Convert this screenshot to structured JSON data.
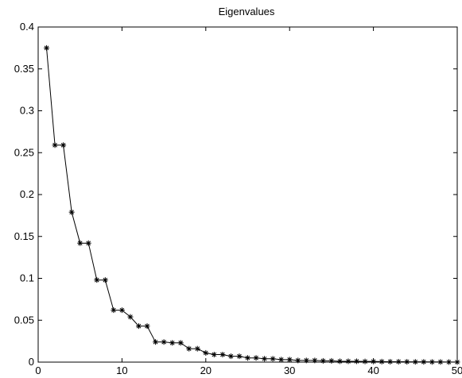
{
  "chart_data": {
    "type": "line",
    "title": "Eigenvalues",
    "xlabel": "",
    "ylabel": "",
    "xlim": [
      0,
      50
    ],
    "ylim": [
      0,
      0.4
    ],
    "grid": false,
    "x_ticks": [
      0,
      10,
      20,
      30,
      40,
      50
    ],
    "x_tick_labels": [
      "0",
      "10",
      "20",
      "30",
      "40",
      "50"
    ],
    "y_ticks": [
      0,
      0.05,
      0.1,
      0.15,
      0.2,
      0.25,
      0.3,
      0.35,
      0.4
    ],
    "y_tick_labels": [
      "0",
      "0.05",
      "0.1",
      "0.15",
      "0.2",
      "0.25",
      "0.3",
      "0.35",
      "0.4"
    ],
    "marker": "asterisk",
    "line_color": "#000000",
    "series": [
      {
        "x": [
          1,
          2,
          3,
          4,
          5,
          6,
          7,
          8,
          9,
          10,
          11,
          12,
          13,
          14,
          15,
          16,
          17,
          18,
          19,
          20,
          21,
          22,
          23,
          24,
          25,
          26,
          27,
          28,
          29,
          30,
          31,
          32,
          33,
          34,
          35,
          36,
          37,
          38,
          39,
          40,
          41,
          42,
          43,
          44,
          45,
          46,
          47,
          48,
          49,
          50
        ],
        "values": [
          0.375,
          0.259,
          0.259,
          0.179,
          0.142,
          0.142,
          0.098,
          0.098,
          0.062,
          0.062,
          0.054,
          0.043,
          0.043,
          0.024,
          0.024,
          0.023,
          0.023,
          0.016,
          0.016,
          0.011,
          0.009,
          0.009,
          0.007,
          0.007,
          0.005,
          0.005,
          0.004,
          0.004,
          0.003,
          0.003,
          0.002,
          0.002,
          0.002,
          0.0015,
          0.0015,
          0.001,
          0.001,
          0.001,
          0.0008,
          0.0008,
          0.0006,
          0.0005,
          0.0005,
          0.0004,
          0.0003,
          0.0003,
          0.0002,
          0.0002,
          0.0001,
          0.0001
        ]
      }
    ]
  }
}
